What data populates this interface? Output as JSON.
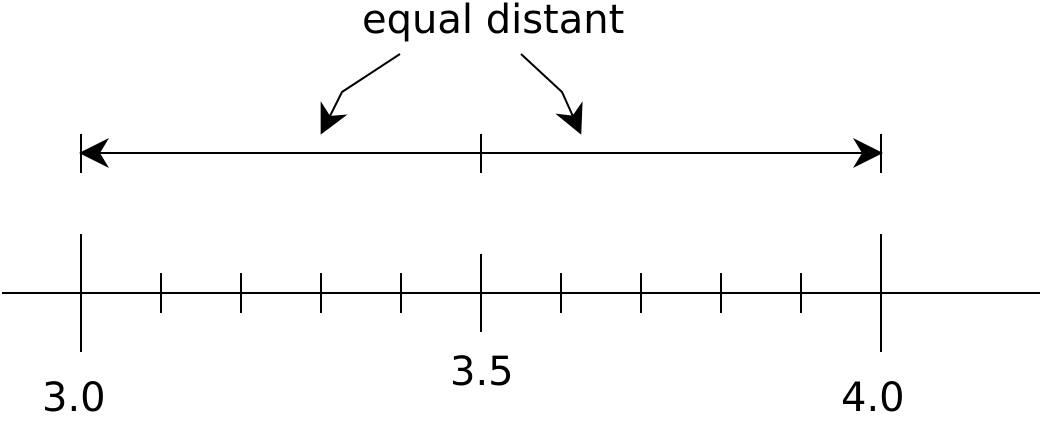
{
  "annotation": {
    "text": "equal distant"
  },
  "number_line": {
    "labels": [
      "3.0",
      "3.5",
      "4.0"
    ]
  },
  "colors": {
    "stroke": "#000000",
    "background": "#ffffff"
  }
}
